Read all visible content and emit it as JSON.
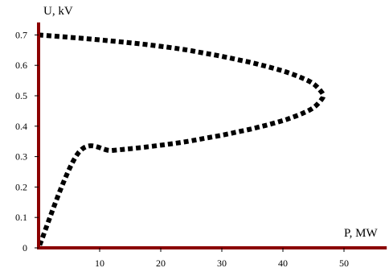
{
  "chart_data": {
    "type": "line",
    "title": "",
    "xlabel": "P, MW",
    "ylabel": "U, kV",
    "xlim": [
      0,
      57
    ],
    "ylim": [
      0,
      0.72
    ],
    "x_ticks": [
      10,
      20,
      30,
      40,
      50
    ],
    "y_ticks": [
      0,
      0.1,
      0.2,
      0.3,
      0.4,
      0.5,
      0.6,
      0.7
    ],
    "x_tick_labels": [
      "10",
      "20",
      "30",
      "40",
      "50"
    ],
    "y_tick_labels": [
      "0",
      "0.1",
      "0.2",
      "0.3",
      "0.4",
      "0.5",
      "0.6",
      "0.7"
    ],
    "grid": false,
    "legend": "none",
    "colors": {
      "axis": "#8b0000",
      "line": "#000000",
      "text": "#000000"
    },
    "line_style": "dotted",
    "series": [
      {
        "x": [
          0,
          6.43,
          12.0,
          16.89,
          21.0,
          24.43,
          27.18,
          29.12,
          31.13,
          33.0,
          34.64,
          36.05,
          37.25,
          39.25,
          40.87,
          43.32,
          45.08,
          46.25,
          46.6,
          46.25,
          45.08,
          43.32,
          40.87,
          39.25,
          37.25,
          36.05,
          34.64,
          33.0,
          31.13,
          29.12,
          27.18,
          24.43,
          21.0,
          16.89,
          12.0,
          6.43,
          0
        ],
        "y": [
          0.7,
          0.69,
          0.68,
          0.67,
          0.66,
          0.65,
          0.64,
          0.633,
          0.625,
          0.617,
          0.61,
          0.603,
          0.597,
          0.586,
          0.576,
          0.557,
          0.538,
          0.514,
          0.5,
          0.486,
          0.462,
          0.443,
          0.424,
          0.414,
          0.403,
          0.397,
          0.39,
          0.383,
          0.375,
          0.367,
          0.36,
          0.35,
          0.34,
          0.33,
          0.32,
          0.31,
          0
        ]
      }
    ]
  }
}
